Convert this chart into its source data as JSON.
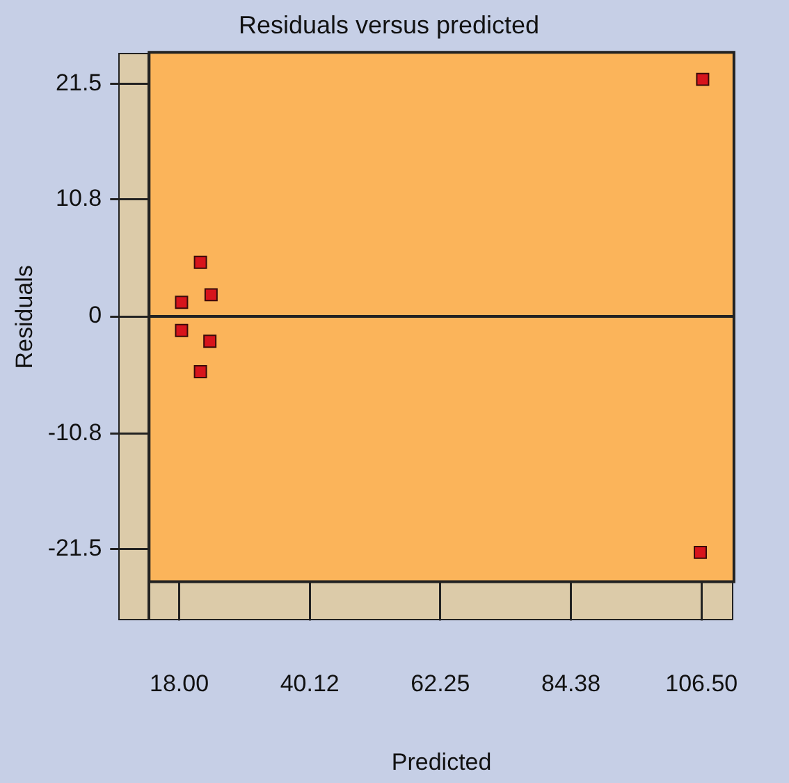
{
  "chart_data": {
    "type": "scatter",
    "title": "Residuals versus predicted",
    "xlabel": "Predicted",
    "ylabel": "Residuals",
    "x": [
      18.4,
      18.4,
      21.6,
      21.6,
      23.4,
      23.2,
      106.7,
      106.3
    ],
    "series": [
      {
        "color": "#d7141c",
        "values": [
          1.3,
          -1.3,
          5.0,
          -5.1,
          2.0,
          -2.3,
          21.9,
          -21.8
        ]
      }
    ],
    "xlim": [
      12.9,
      112.0
    ],
    "xticks": [
      {
        "value": 18.0,
        "label": "18.00"
      },
      40.12,
      62.25,
      84.38,
      {
        "value": 106.5,
        "label": "106.50"
      }
    ],
    "ylim": [
      -24.5,
      24.4
    ],
    "yticks": [
      -21.5,
      -10.8,
      0,
      10.8,
      21.5
    ],
    "ref_lines": [
      {
        "axis": "y",
        "value": 0,
        "color": "#222222"
      }
    ],
    "marker": "square",
    "grid": false,
    "legend": false
  }
}
